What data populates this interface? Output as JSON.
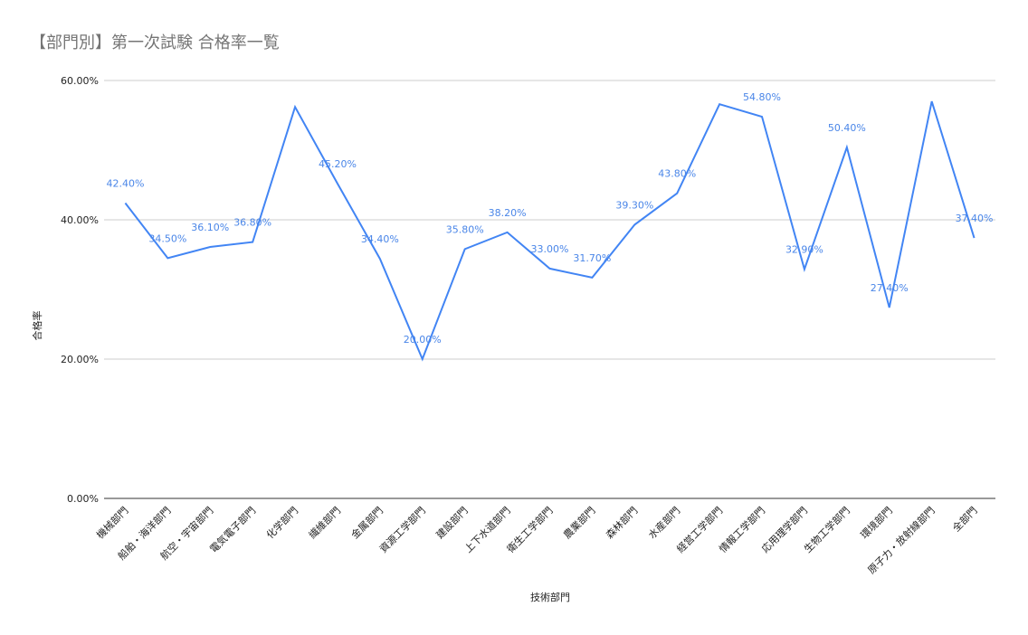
{
  "chart_data": {
    "type": "line",
    "title": "【部門別】第一次試験 合格率一覧",
    "x_label": "技術部門",
    "y_label": "合格率",
    "categories": [
      "機械部門",
      "船舶・海洋部門",
      "航空・宇宙部門",
      "電気電子部門",
      "化学部門",
      "繊維部門",
      "金属部門",
      "資源工学部門",
      "建設部門",
      "上下水道部門",
      "衛生工学部門",
      "農業部門",
      "森林部門",
      "水産部門",
      "経営工学部門",
      "情報工学部門",
      "応用理学部門",
      "生物工学部門",
      "環境部門",
      "原子力・放射線部門",
      "全部門"
    ],
    "series": [
      {
        "name": "合格率",
        "color": "#4285f4",
        "values": [
          42.4,
          34.5,
          36.1,
          36.8,
          56.2,
          45.2,
          34.4,
          20.0,
          35.8,
          38.2,
          33.0,
          31.7,
          39.3,
          43.8,
          56.6,
          54.8,
          32.9,
          50.4,
          27.4,
          57.0,
          37.4
        ],
        "value_labels": [
          "42.40%",
          "34.50%",
          "36.10%",
          "36.80%",
          null,
          "45.20%",
          "34.40%",
          "20.00%",
          "35.80%",
          "38.20%",
          "33.00%",
          "31.70%",
          "39.30%",
          "43.80%",
          null,
          "54.80%",
          "32.90%",
          "50.40%",
          "27.40%",
          null,
          "37.40%"
        ]
      }
    ],
    "ylim": [
      0,
      60
    ],
    "yticks": [
      {
        "value": 0,
        "label": "0.00%"
      },
      {
        "value": 20,
        "label": "20.00%"
      },
      {
        "value": 40,
        "label": "40.00%"
      },
      {
        "value": 60,
        "label": "60.00%"
      }
    ],
    "grid": true
  }
}
